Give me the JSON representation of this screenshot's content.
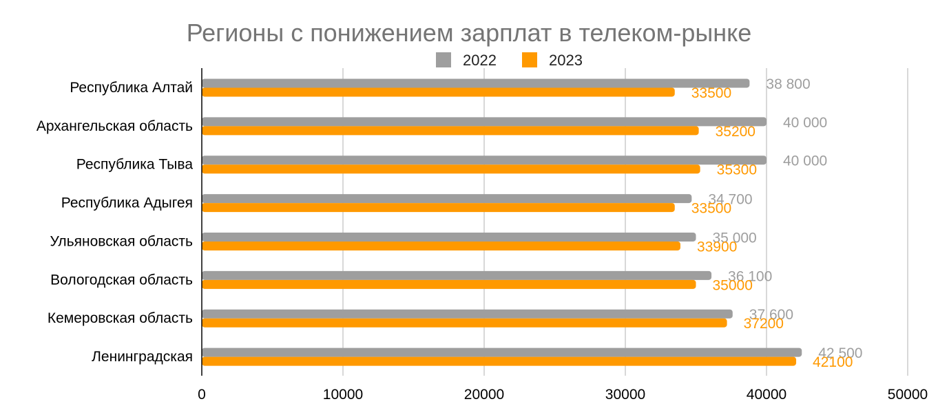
{
  "chart_data": {
    "type": "bar",
    "orientation": "horizontal",
    "title": "Регионы с понижением зарплат в телеком-рынке",
    "xlabel": "",
    "ylabel": "",
    "categories": [
      "Республика Алтай",
      "Архангельская область",
      "Республика Тыва",
      "Республика Адыгея",
      "Ульяновская область",
      "Вологодская область",
      "Кемеровская область",
      "Ленинградская"
    ],
    "series": [
      {
        "name": "2022",
        "color": "#9e9e9e",
        "values": [
          38800,
          40000,
          40000,
          34700,
          35000,
          36100,
          37600,
          42500
        ],
        "data_labels": [
          "38 800",
          "40 000",
          "40 000",
          "34 700",
          "35 000",
          "36 100",
          "37 600",
          "42 500"
        ]
      },
      {
        "name": "2023",
        "color": "#ff9900",
        "values": [
          33500,
          35200,
          35300,
          33500,
          33900,
          35000,
          37200,
          42100
        ],
        "data_labels": [
          "33500",
          "35200",
          "35300",
          "33500",
          "33900",
          "35000",
          "37200",
          "42100"
        ]
      }
    ],
    "xlim": [
      0,
      50000
    ],
    "xticks": [
      "0",
      "10000",
      "20000",
      "30000",
      "40000",
      "50000"
    ],
    "grid": true,
    "legend_position": "top-center"
  }
}
